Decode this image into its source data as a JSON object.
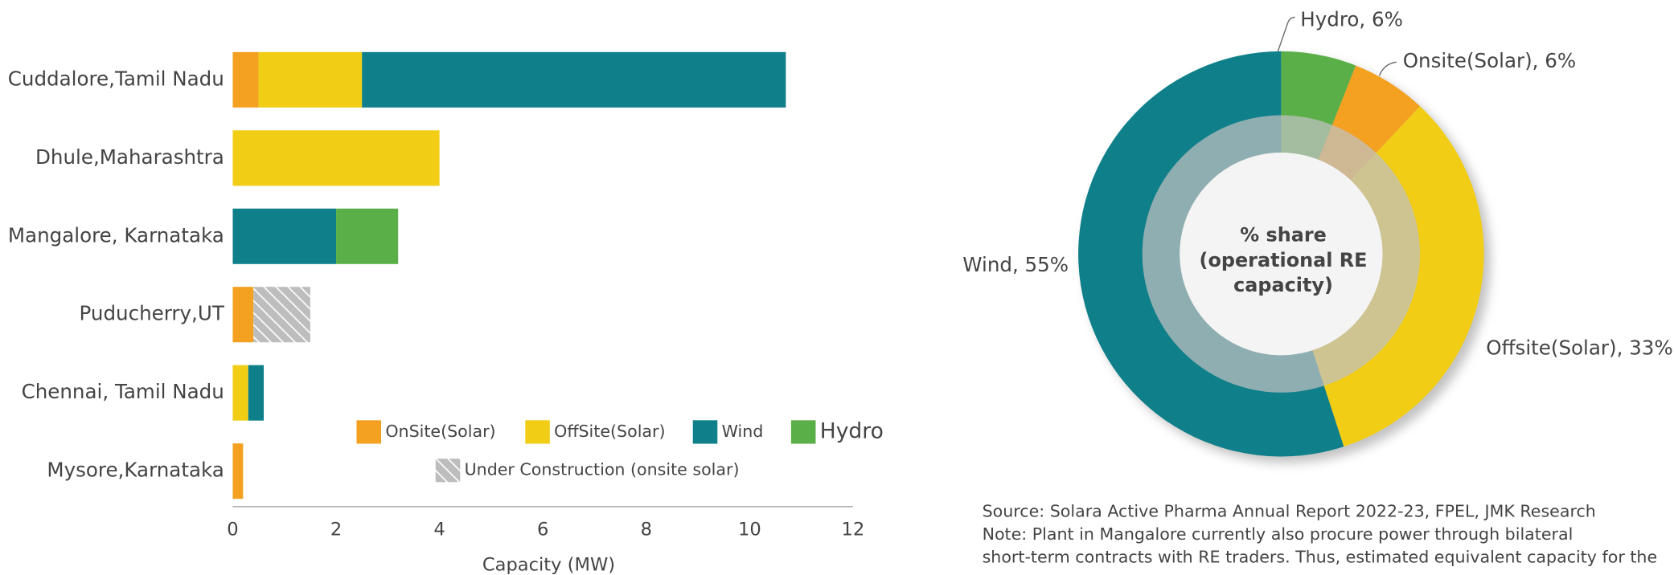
{
  "chart_data": [
    {
      "type": "bar",
      "orientation": "horizontal",
      "stacked": true,
      "categories": [
        "Cuddalore,Tamil Nadu",
        "Dhule,Maharashtra",
        "Mangalore, Karnataka",
        "Puducherry,UT",
        "Chennai, Tamil Nadu",
        "Mysore,Karnataka"
      ],
      "series": [
        {
          "name": "OnSite(Solar)",
          "color": "#f4a020",
          "values": [
            0.5,
            null,
            null,
            0.4,
            null,
            0.2
          ]
        },
        {
          "name": "OffSite(Solar)",
          "color": "#f2cd16",
          "values": [
            2.0,
            4.0,
            null,
            null,
            0.3,
            null
          ]
        },
        {
          "name": "Wind",
          "color": "#0f7f8a",
          "values": [
            8.2,
            null,
            2.0,
            null,
            0.3,
            null
          ]
        },
        {
          "name": "Hydro",
          "color": "#5aaf48",
          "values": [
            null,
            null,
            1.2,
            null,
            null,
            null
          ]
        },
        {
          "name": "Under Construction (onsite solar)",
          "color": "#bdbdbd",
          "hatch": true,
          "values": [
            null,
            null,
            null,
            1.1,
            null,
            null
          ]
        }
      ],
      "xlim": [
        0,
        12
      ],
      "xticks": [
        0,
        2,
        4,
        6,
        8,
        10,
        12
      ],
      "xlabel": "Capacity (MW)"
    },
    {
      "type": "donut",
      "values": [
        6,
        6,
        33,
        55
      ],
      "value_labels": [
        "Hydro, 6%",
        "Onsite(Solar), 6%",
        "Offsite(Solar), 33%",
        "Wind, 55%"
      ],
      "colors": [
        "#5aaf48",
        "#f4a020",
        "#f2cd16",
        "#0f7f8a"
      ],
      "center_label": [
        "% share",
        "(operational RE",
        "capacity)"
      ]
    }
  ],
  "notes": [
    "Source: Solara Active Pharma Annual Report 2022-23, FPEL, JMK Research",
    "Note: Plant in Mangalore currently also procure power through bilateral",
    "short-term contracts with RE traders. Thus, estimated equivalent capacity for the"
  ]
}
